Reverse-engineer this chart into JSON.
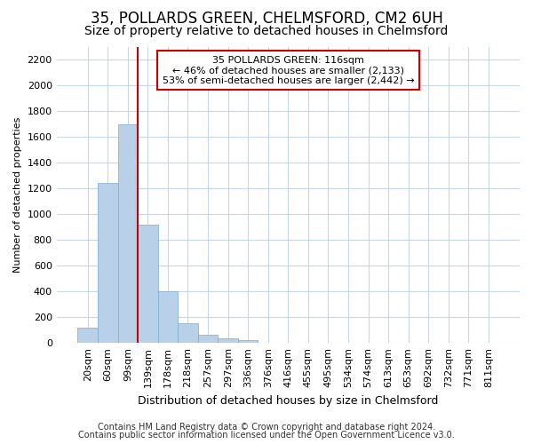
{
  "title1": "35, POLLARDS GREEN, CHELMSFORD, CM2 6UH",
  "title2": "Size of property relative to detached houses in Chelmsford",
  "xlabel": "Distribution of detached houses by size in Chelmsford",
  "ylabel": "Number of detached properties",
  "categories": [
    "20sqm",
    "60sqm",
    "99sqm",
    "139sqm",
    "178sqm",
    "218sqm",
    "257sqm",
    "297sqm",
    "336sqm",
    "376sqm",
    "416sqm",
    "455sqm",
    "495sqm",
    "534sqm",
    "574sqm",
    "613sqm",
    "653sqm",
    "692sqm",
    "732sqm",
    "771sqm",
    "811sqm"
  ],
  "values": [
    115,
    1240,
    1700,
    920,
    400,
    150,
    65,
    35,
    20,
    0,
    0,
    0,
    0,
    0,
    0,
    0,
    0,
    0,
    0,
    0,
    0
  ],
  "bar_color": "#b8d0e8",
  "bar_edge_color": "#7aacd4",
  "ylim": [
    0,
    2300
  ],
  "yticks": [
    0,
    200,
    400,
    600,
    800,
    1000,
    1200,
    1400,
    1600,
    1800,
    2000,
    2200
  ],
  "vline_x_index": 2,
  "vline_x_offset": 0.5,
  "vline_color": "#cc0000",
  "annotation_line1": "35 POLLARDS GREEN: 116sqm",
  "annotation_line2": "← 46% of detached houses are smaller (2,133)",
  "annotation_line3": "53% of semi-detached houses are larger (2,442) →",
  "annotation_box_color": "#ffffff",
  "annotation_border_color": "#cc0000",
  "footer1": "Contains HM Land Registry data © Crown copyright and database right 2024.",
  "footer2": "Contains public sector information licensed under the Open Government Licence v3.0.",
  "bg_color": "#ffffff",
  "grid_color": "#c8d8e8",
  "title1_fontsize": 12,
  "title2_fontsize": 10,
  "xlabel_fontsize": 9,
  "ylabel_fontsize": 8,
  "tick_fontsize": 8,
  "footer_fontsize": 7,
  "annot_fontsize": 8
}
